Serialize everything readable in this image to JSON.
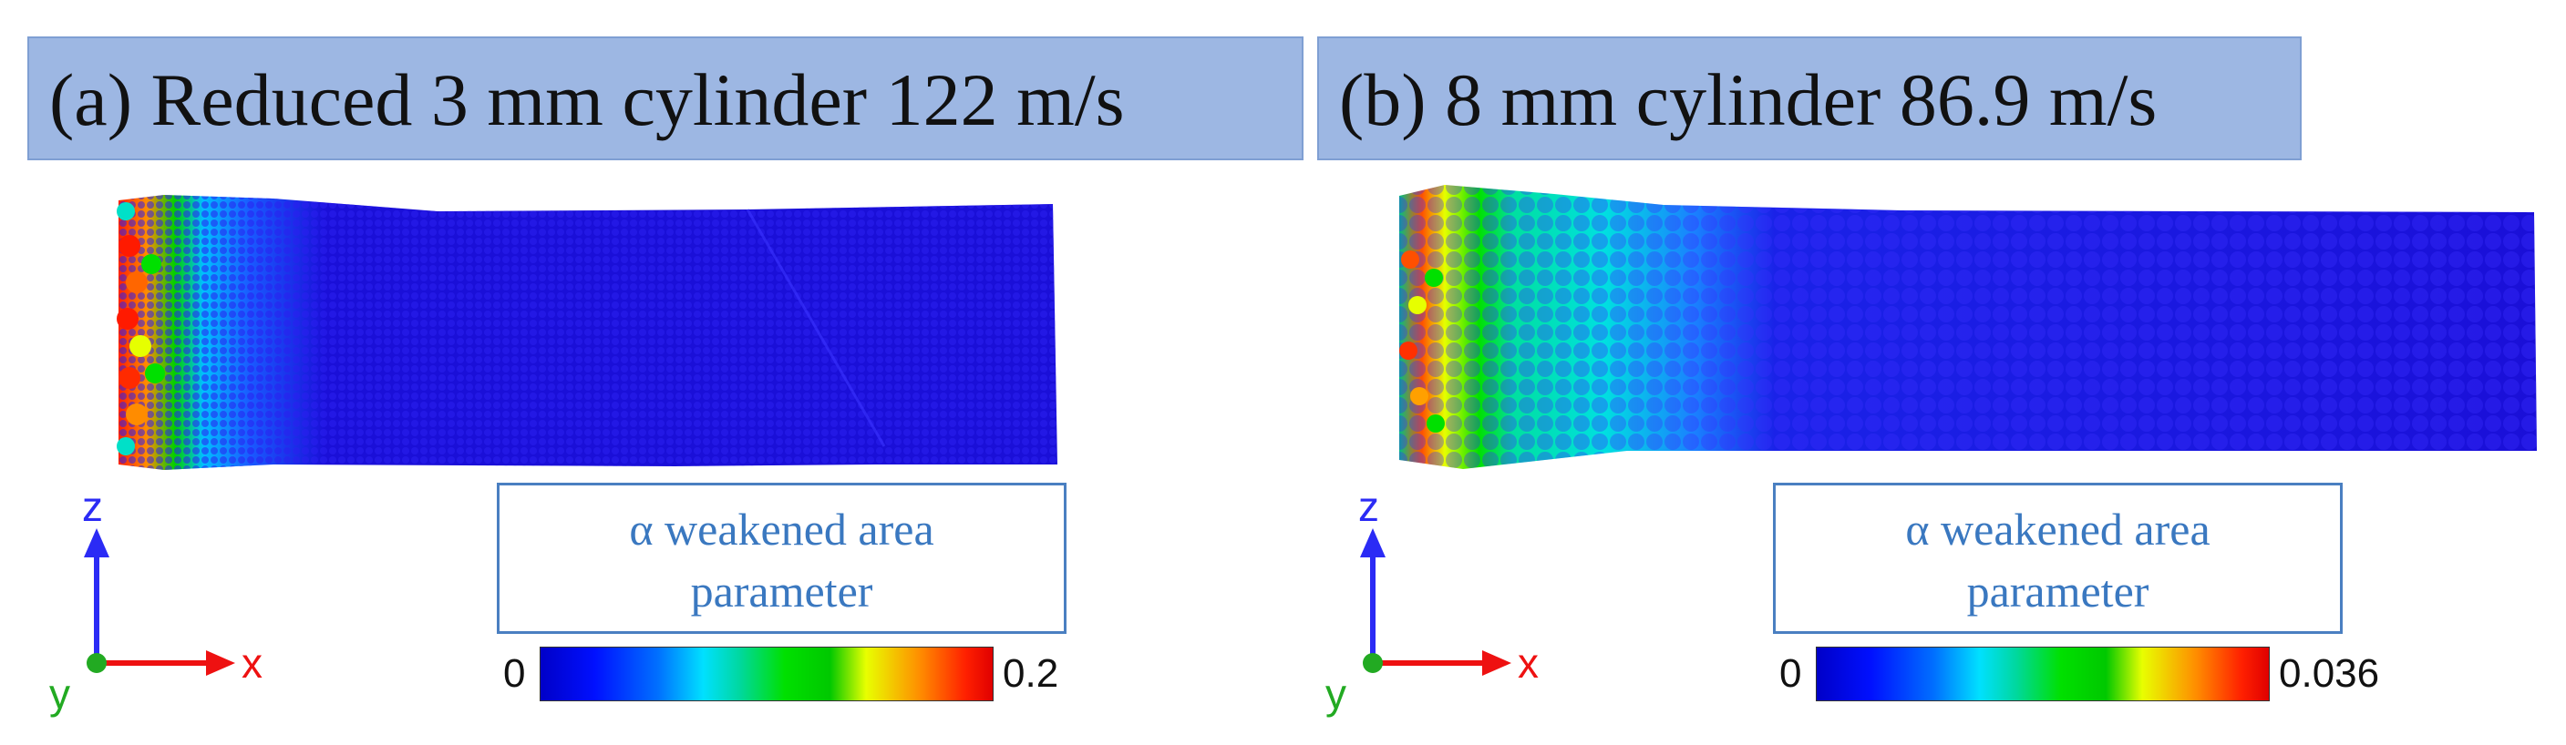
{
  "panels": [
    {
      "title": "(a) Reduced 3 mm cylinder 122 m/s",
      "legend_line1": "α weakened area",
      "legend_line2": "parameter",
      "scale_min": "0",
      "scale_max": "0.2"
    },
    {
      "title": "(b) 8 mm cylinder 86.9 m/s",
      "legend_line1": "α weakened area",
      "legend_line2": "parameter",
      "scale_min": "0",
      "scale_max": "0.036"
    }
  ],
  "axes": {
    "z": "z",
    "x": "x",
    "y": "y"
  },
  "colors": {
    "specimen_body": "#1a0fd8",
    "title_bg": "#9db7e3",
    "legend_text": "#3a78c0",
    "axis_z": "#2b2bf5",
    "axis_x": "#ee1111",
    "axis_y": "#22aa22"
  }
}
